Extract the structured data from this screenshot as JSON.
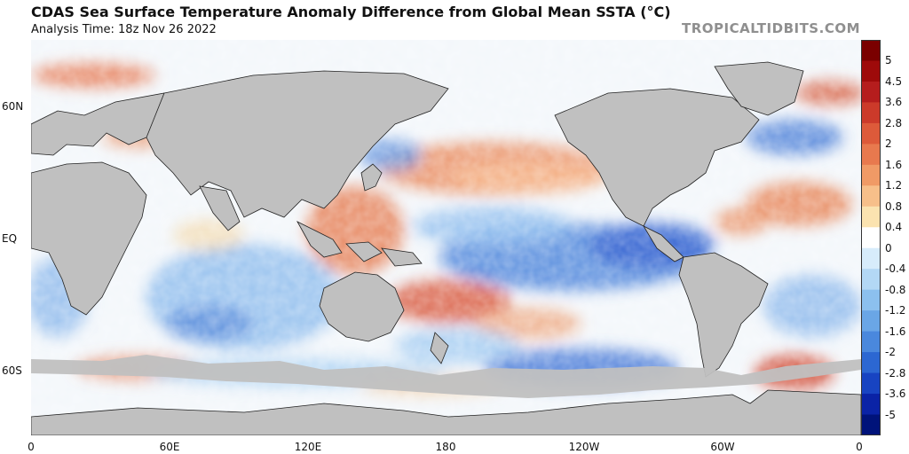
{
  "header": {
    "title": "CDAS Sea Surface Temperature Anomaly Difference from Global Mean SSTA (°C)",
    "subtitle": "Analysis Time: 18z Nov 26 2022",
    "watermark": "TROPICALTIDBITS.COM"
  },
  "map": {
    "lat_labels": [
      "60N",
      "EQ",
      "60S"
    ],
    "lon_labels": [
      "0",
      "60E",
      "120E",
      "180",
      "120W",
      "60W",
      "0"
    ],
    "land_color": "#c0c0c0"
  },
  "colorbar": {
    "labels": [
      "5",
      "4.5",
      "3.6",
      "2.8",
      "2",
      "1.6",
      "1.2",
      "0.8",
      "0.4",
      "0",
      "-0.4",
      "-0.8",
      "-1.2",
      "-1.6",
      "-2",
      "-2.8",
      "-3.6",
      "-5"
    ],
    "colors": [
      "#7a0000",
      "#9e0a0a",
      "#b51d1d",
      "#cc3a2a",
      "#dd5a3a",
      "#e8794e",
      "#f09a66",
      "#f7bf8a",
      "#fbe3b0",
      "#ffffff",
      "#d7ecfb",
      "#b3d8f5",
      "#8cc0ee",
      "#6aa6e6",
      "#4a88dd",
      "#2c67d2",
      "#1844c2",
      "#0a23a6",
      "#00137a"
    ]
  }
}
